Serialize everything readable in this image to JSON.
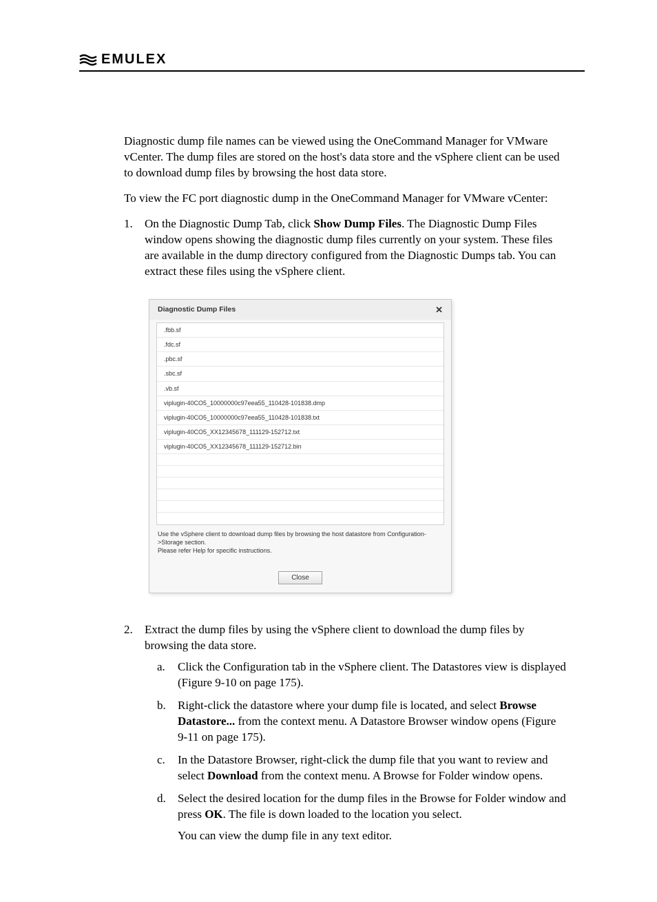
{
  "header": {
    "brand_text": "EMULEX"
  },
  "intro": {
    "p1": "Diagnostic dump file names can be viewed using the OneCommand Manager for VMware vCenter. The dump files are stored on the host's data store and the vSphere client can be used to download dump files by browsing the host data store.",
    "p2": "To view the FC port diagnostic dump in the OneCommand Manager for VMware vCenter:"
  },
  "step1": {
    "num": "1.",
    "text_before": "On the Diagnostic Dump Tab, click ",
    "bold": "Show Dump Files",
    "text_after": ". The Diagnostic Dump Files window opens showing the diagnostic dump files currently on your system. These files are available in the dump directory configured from the Diagnostic Dumps tab. You can extract these files using the vSphere client."
  },
  "dialog": {
    "title": "Diagnostic Dump Files",
    "close_x": "✕",
    "files": [
      ".fbb.sf",
      ".fdc.sf",
      ".pbc.sf",
      ".sbc.sf",
      ".vb.sf",
      "viplugin-40CO5_10000000c97eea55_110428-101838.dmp",
      "viplugin-40CO5_10000000c97eea55_110428-101838.txt",
      "viplugin-40CO5_XX12345678_111129-152712.txt",
      "viplugin-40CO5_XX12345678_111129-152712.bin"
    ],
    "empty_rows": 6,
    "hint_line1": "Use the vSphere client to download dump files by browsing the host datastore from Configuration->Storage section.",
    "hint_line2": "Please refer Help for specific instructions.",
    "close_label": "Close"
  },
  "step2": {
    "num": "2.",
    "text": "Extract the dump files by using the vSphere client to download the dump files by browsing the data store.",
    "a": {
      "num": "a.",
      "text": "Click the Configuration tab in the vSphere client. The Datastores view is displayed (Figure 9-10 on page 175)."
    },
    "b": {
      "num": "b.",
      "t1": "Right-click the datastore where your dump file is located, and select ",
      "bold1": "Browse Datastore...",
      "t2": " from the context menu. A Datastore Browser window opens (Figure 9-11 on page 175)."
    },
    "c": {
      "num": "c.",
      "t1": "In the Datastore Browser, right-click the dump file that you want to review and select ",
      "bold1": "Download",
      "t2": " from the context menu. A Browse for Folder window opens."
    },
    "d": {
      "num": "d.",
      "t1": "Select the desired location for the dump files in the Browse for Folder window and press ",
      "bold1": "OK",
      "t2": ". The file is down loaded to the location you select.",
      "tail": "You can view the dump file in any text editor."
    }
  }
}
